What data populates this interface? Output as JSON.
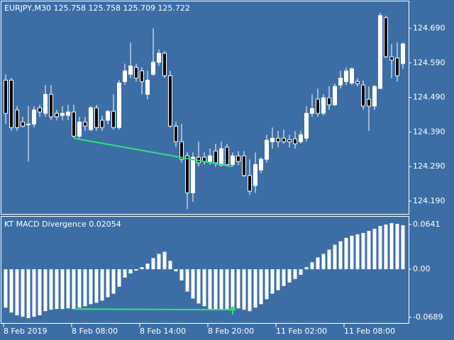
{
  "chart_data": [
    {
      "type": "candlestick",
      "title": "EURJPY,M30 125.758 125.758 125.709 125.722",
      "categories": [
        "8 Feb 2019",
        null,
        null,
        null,
        null,
        null,
        null,
        null,
        null,
        null,
        null,
        null,
        "8 Feb 08:00",
        null,
        null,
        null,
        null,
        null,
        null,
        null,
        null,
        null,
        null,
        null,
        "8 Feb 14:00",
        null,
        null,
        null,
        null,
        null,
        null,
        null,
        null,
        null,
        null,
        null,
        "8 Feb 20:00",
        null,
        null,
        null,
        null,
        null,
        null,
        null,
        null,
        null,
        null,
        null,
        "11 Feb 02:00",
        null,
        null,
        null,
        null,
        null,
        null,
        null,
        null,
        null,
        null,
        null,
        "11 Feb 08:00",
        null,
        null,
        null,
        null,
        null,
        null,
        null,
        null,
        null,
        null
      ],
      "open": [
        124.54,
        124.54,
        124.454,
        124.419,
        124.413,
        124.413,
        124.46,
        124.444,
        124.499,
        124.444,
        124.438,
        124.438,
        124.448,
        124.378,
        124.419,
        124.397,
        124.46,
        124.424,
        124.424,
        124.45,
        124.403,
        124.536,
        124.557,
        124.577,
        124.567,
        124.499,
        124.557,
        124.592,
        124.618,
        124.553,
        124.407,
        124.362,
        124.321,
        124.214,
        124.317,
        124.317,
        124.305,
        124.335,
        124.294,
        124.346,
        124.296,
        124.321,
        124.321,
        124.264,
        124.235,
        124.28,
        124.311,
        124.362,
        124.372,
        124.372,
        124.368,
        124.37,
        124.362,
        124.372,
        124.444,
        124.485,
        124.444,
        124.489,
        124.469,
        124.526,
        124.536,
        124.532,
        124.536,
        124.526,
        124.485,
        124.465,
        124.516,
        124.721,
        124.608,
        124.604,
        124.588
      ],
      "high": [
        124.557,
        124.546,
        124.465,
        124.434,
        124.465,
        124.465,
        124.469,
        124.526,
        124.526,
        124.454,
        124.465,
        124.469,
        124.469,
        124.434,
        124.434,
        124.465,
        124.469,
        124.438,
        124.454,
        124.499,
        124.54,
        124.588,
        124.649,
        124.588,
        124.577,
        124.567,
        124.69,
        124.629,
        124.624,
        124.567,
        124.419,
        124.413,
        124.331,
        124.331,
        124.362,
        124.331,
        124.342,
        124.356,
        124.362,
        124.356,
        124.331,
        124.335,
        124.335,
        124.311,
        124.331,
        124.317,
        124.382,
        124.403,
        124.393,
        124.397,
        124.382,
        124.393,
        124.393,
        124.465,
        124.499,
        124.516,
        124.499,
        124.522,
        124.53,
        124.567,
        124.577,
        124.577,
        124.546,
        124.54,
        124.522,
        124.526,
        124.735,
        124.727,
        124.645,
        124.649,
        124.649
      ],
      "low": [
        124.413,
        124.393,
        124.393,
        124.403,
        124.305,
        124.403,
        124.434,
        124.434,
        124.424,
        124.424,
        124.424,
        124.424,
        124.372,
        124.372,
        124.393,
        124.393,
        124.393,
        124.393,
        124.413,
        124.397,
        124.397,
        124.526,
        124.546,
        124.536,
        124.499,
        124.485,
        124.553,
        124.581,
        124.546,
        124.403,
        124.346,
        124.301,
        124.167,
        124.188,
        124.29,
        124.296,
        124.296,
        124.29,
        124.29,
        124.29,
        124.29,
        124.294,
        124.26,
        124.208,
        124.214,
        124.27,
        124.301,
        124.342,
        124.346,
        124.356,
        124.346,
        124.342,
        124.356,
        124.362,
        124.434,
        124.434,
        124.438,
        124.454,
        124.465,
        124.516,
        124.526,
        124.526,
        124.522,
        124.454,
        124.393,
        124.454,
        124.516,
        124.604,
        124.546,
        124.536,
        124.573
      ],
      "close": [
        124.444,
        124.403,
        124.403,
        124.407,
        124.411,
        124.454,
        124.448,
        124.499,
        124.434,
        124.434,
        124.444,
        124.448,
        124.378,
        124.419,
        124.407,
        124.46,
        124.403,
        124.403,
        124.45,
        124.403,
        124.532,
        124.567,
        124.581,
        124.546,
        124.536,
        124.54,
        124.592,
        124.618,
        124.553,
        124.407,
        124.362,
        124.311,
        124.214,
        124.317,
        124.301,
        124.305,
        124.321,
        124.301,
        124.342,
        124.296,
        124.321,
        124.305,
        124.264,
        124.219,
        124.296,
        124.311,
        124.366,
        124.372,
        124.362,
        124.362,
        124.362,
        124.356,
        124.382,
        124.444,
        124.458,
        124.444,
        124.489,
        124.469,
        124.522,
        124.546,
        124.567,
        124.573,
        124.53,
        124.465,
        124.465,
        124.522,
        124.727,
        124.608,
        124.598,
        124.553,
        124.645
      ],
      "up_color": "#ffffff",
      "down_color": "#000000",
      "wick_color": "#ffffff",
      "divergence_color": "#2ee27a",
      "divergence_bars": [
        12,
        40
      ],
      "ylim": [
        124.153,
        124.768
      ],
      "yticks": [
        {
          "value": 124.69,
          "label": "124.690"
        },
        {
          "value": 124.59,
          "label": "124.590"
        },
        {
          "value": 124.49,
          "label": "124.490"
        },
        {
          "value": 124.39,
          "label": "124.390"
        },
        {
          "value": 124.29,
          "label": "124.290"
        },
        {
          "value": 124.19,
          "label": "124.190"
        }
      ]
    },
    {
      "type": "bar",
      "title": "KT MACD Divergence 0.02054",
      "values": [
        -0.055,
        -0.062,
        -0.066,
        -0.068,
        -0.07,
        -0.068,
        -0.066,
        -0.06,
        -0.058,
        -0.057,
        -0.057,
        -0.056,
        -0.057,
        -0.055,
        -0.053,
        -0.05,
        -0.048,
        -0.045,
        -0.04,
        -0.035,
        -0.025,
        -0.012,
        -0.006,
        -0.002,
        0.003,
        0.008,
        0.016,
        0.022,
        0.025,
        0.012,
        -0.003,
        -0.016,
        -0.032,
        -0.042,
        -0.049,
        -0.053,
        -0.057,
        -0.058,
        -0.058,
        -0.058,
        -0.058,
        -0.056,
        -0.058,
        -0.06,
        -0.055,
        -0.05,
        -0.043,
        -0.035,
        -0.03,
        -0.024,
        -0.019,
        -0.014,
        -0.008,
        0.003,
        0.01,
        0.017,
        0.022,
        0.028,
        0.035,
        0.04,
        0.045,
        0.048,
        0.05,
        0.052,
        0.055,
        0.058,
        0.062,
        0.064,
        0.066,
        0.065,
        0.063
      ],
      "color": "#ffffff",
      "divergence_color": "#2ee27a",
      "divergence_bars": [
        12,
        40
      ],
      "ylim": [
        -0.077,
        0.0752
      ],
      "yticks": [
        {
          "value": 0.0641,
          "label": "0.0641"
        },
        {
          "value": 0,
          "label": "0.00"
        },
        {
          "value": -0.0689,
          "label": "-0.0689"
        }
      ]
    }
  ]
}
